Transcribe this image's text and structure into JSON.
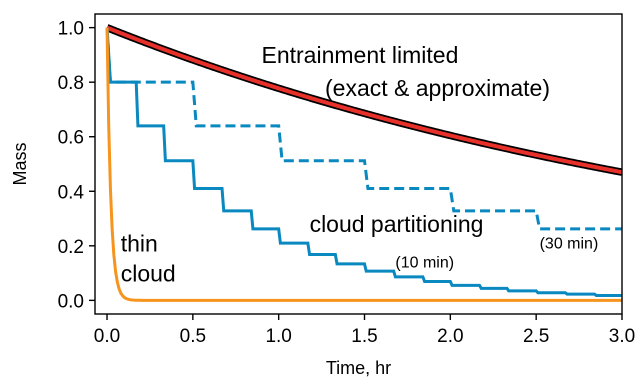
{
  "chart_data": {
    "type": "line",
    "xlabel": "Time, hr",
    "ylabel": "Mass",
    "xlim": [
      -0.07,
      3.0
    ],
    "ylim": [
      -0.05,
      1.05
    ],
    "x_ticks": [
      "0.0",
      "0.5",
      "1.0",
      "1.5",
      "2.0",
      "2.5",
      "3.0"
    ],
    "y_ticks": [
      "0.0",
      "0.2",
      "0.4",
      "0.6",
      "0.8",
      "1.0"
    ],
    "grid": false,
    "legend": "none",
    "series": [
      {
        "kind": "exponential",
        "color": "#e8302a",
        "outline_color": "#000000",
        "x_start": 0,
        "x_end": 3.0,
        "y0": 1.0,
        "y_end": 0.47
      },
      {
        "kind": "step",
        "color": "#0a88c0",
        "dashed": true,
        "points": [
          [
            0,
            1.0
          ],
          [
            0.02,
            0.8
          ],
          [
            0.17,
            0.8
          ],
          [
            0.5,
            0.8
          ],
          [
            0.52,
            0.64
          ],
          [
            1.0,
            0.64
          ],
          [
            1.02,
            0.512
          ],
          [
            1.5,
            0.512
          ],
          [
            1.52,
            0.41
          ],
          [
            2.0,
            0.41
          ],
          [
            2.02,
            0.328
          ],
          [
            2.5,
            0.328
          ],
          [
            2.52,
            0.262
          ],
          [
            3.0,
            0.262
          ]
        ]
      },
      {
        "kind": "step",
        "color": "#0a88c0",
        "dashed": false,
        "points": [
          [
            0,
            1.0
          ],
          [
            0.02,
            0.8
          ],
          [
            0.17,
            0.8
          ],
          [
            0.18,
            0.64
          ],
          [
            0.33,
            0.64
          ],
          [
            0.34,
            0.512
          ],
          [
            0.5,
            0.512
          ],
          [
            0.51,
            0.41
          ],
          [
            0.67,
            0.41
          ],
          [
            0.68,
            0.328
          ],
          [
            0.84,
            0.328
          ],
          [
            0.85,
            0.262
          ],
          [
            1.0,
            0.262
          ],
          [
            1.01,
            0.21
          ],
          [
            1.17,
            0.21
          ],
          [
            1.18,
            0.168
          ],
          [
            1.33,
            0.168
          ],
          [
            1.34,
            0.134
          ],
          [
            1.5,
            0.134
          ],
          [
            1.51,
            0.107
          ],
          [
            1.67,
            0.107
          ],
          [
            1.68,
            0.086
          ],
          [
            1.84,
            0.086
          ],
          [
            1.85,
            0.069
          ],
          [
            2.0,
            0.069
          ],
          [
            2.01,
            0.055
          ],
          [
            2.17,
            0.055
          ],
          [
            2.18,
            0.044
          ],
          [
            2.33,
            0.044
          ],
          [
            2.34,
            0.035
          ],
          [
            2.5,
            0.035
          ],
          [
            2.51,
            0.028
          ],
          [
            2.67,
            0.028
          ],
          [
            2.68,
            0.023
          ],
          [
            2.84,
            0.023
          ],
          [
            2.85,
            0.018
          ],
          [
            3.0,
            0.018
          ]
        ]
      },
      {
        "kind": "exponential",
        "color": "#f7941d",
        "x_start": 0,
        "x_end": 3.0,
        "y0": 1.0,
        "decay_rate": 45
      }
    ],
    "annotations": [
      {
        "text": "Entrainment limited",
        "x": 0.9,
        "y": 0.87,
        "size": "big"
      },
      {
        "text": "(exact & approximate)",
        "x": 1.27,
        "y": 0.75,
        "size": "big"
      },
      {
        "text": "cloud partitioning",
        "x": 1.18,
        "y": 0.25,
        "size": "big"
      },
      {
        "text": "(10 min)",
        "x": 1.68,
        "y": 0.12,
        "size": "small"
      },
      {
        "text": "(30 min)",
        "x": 2.52,
        "y": 0.19,
        "size": "small"
      },
      {
        "text": "thin",
        "x": 0.08,
        "y": 0.18,
        "size": "big"
      },
      {
        "text": "cloud",
        "x": 0.08,
        "y": 0.07,
        "size": "big"
      }
    ]
  }
}
